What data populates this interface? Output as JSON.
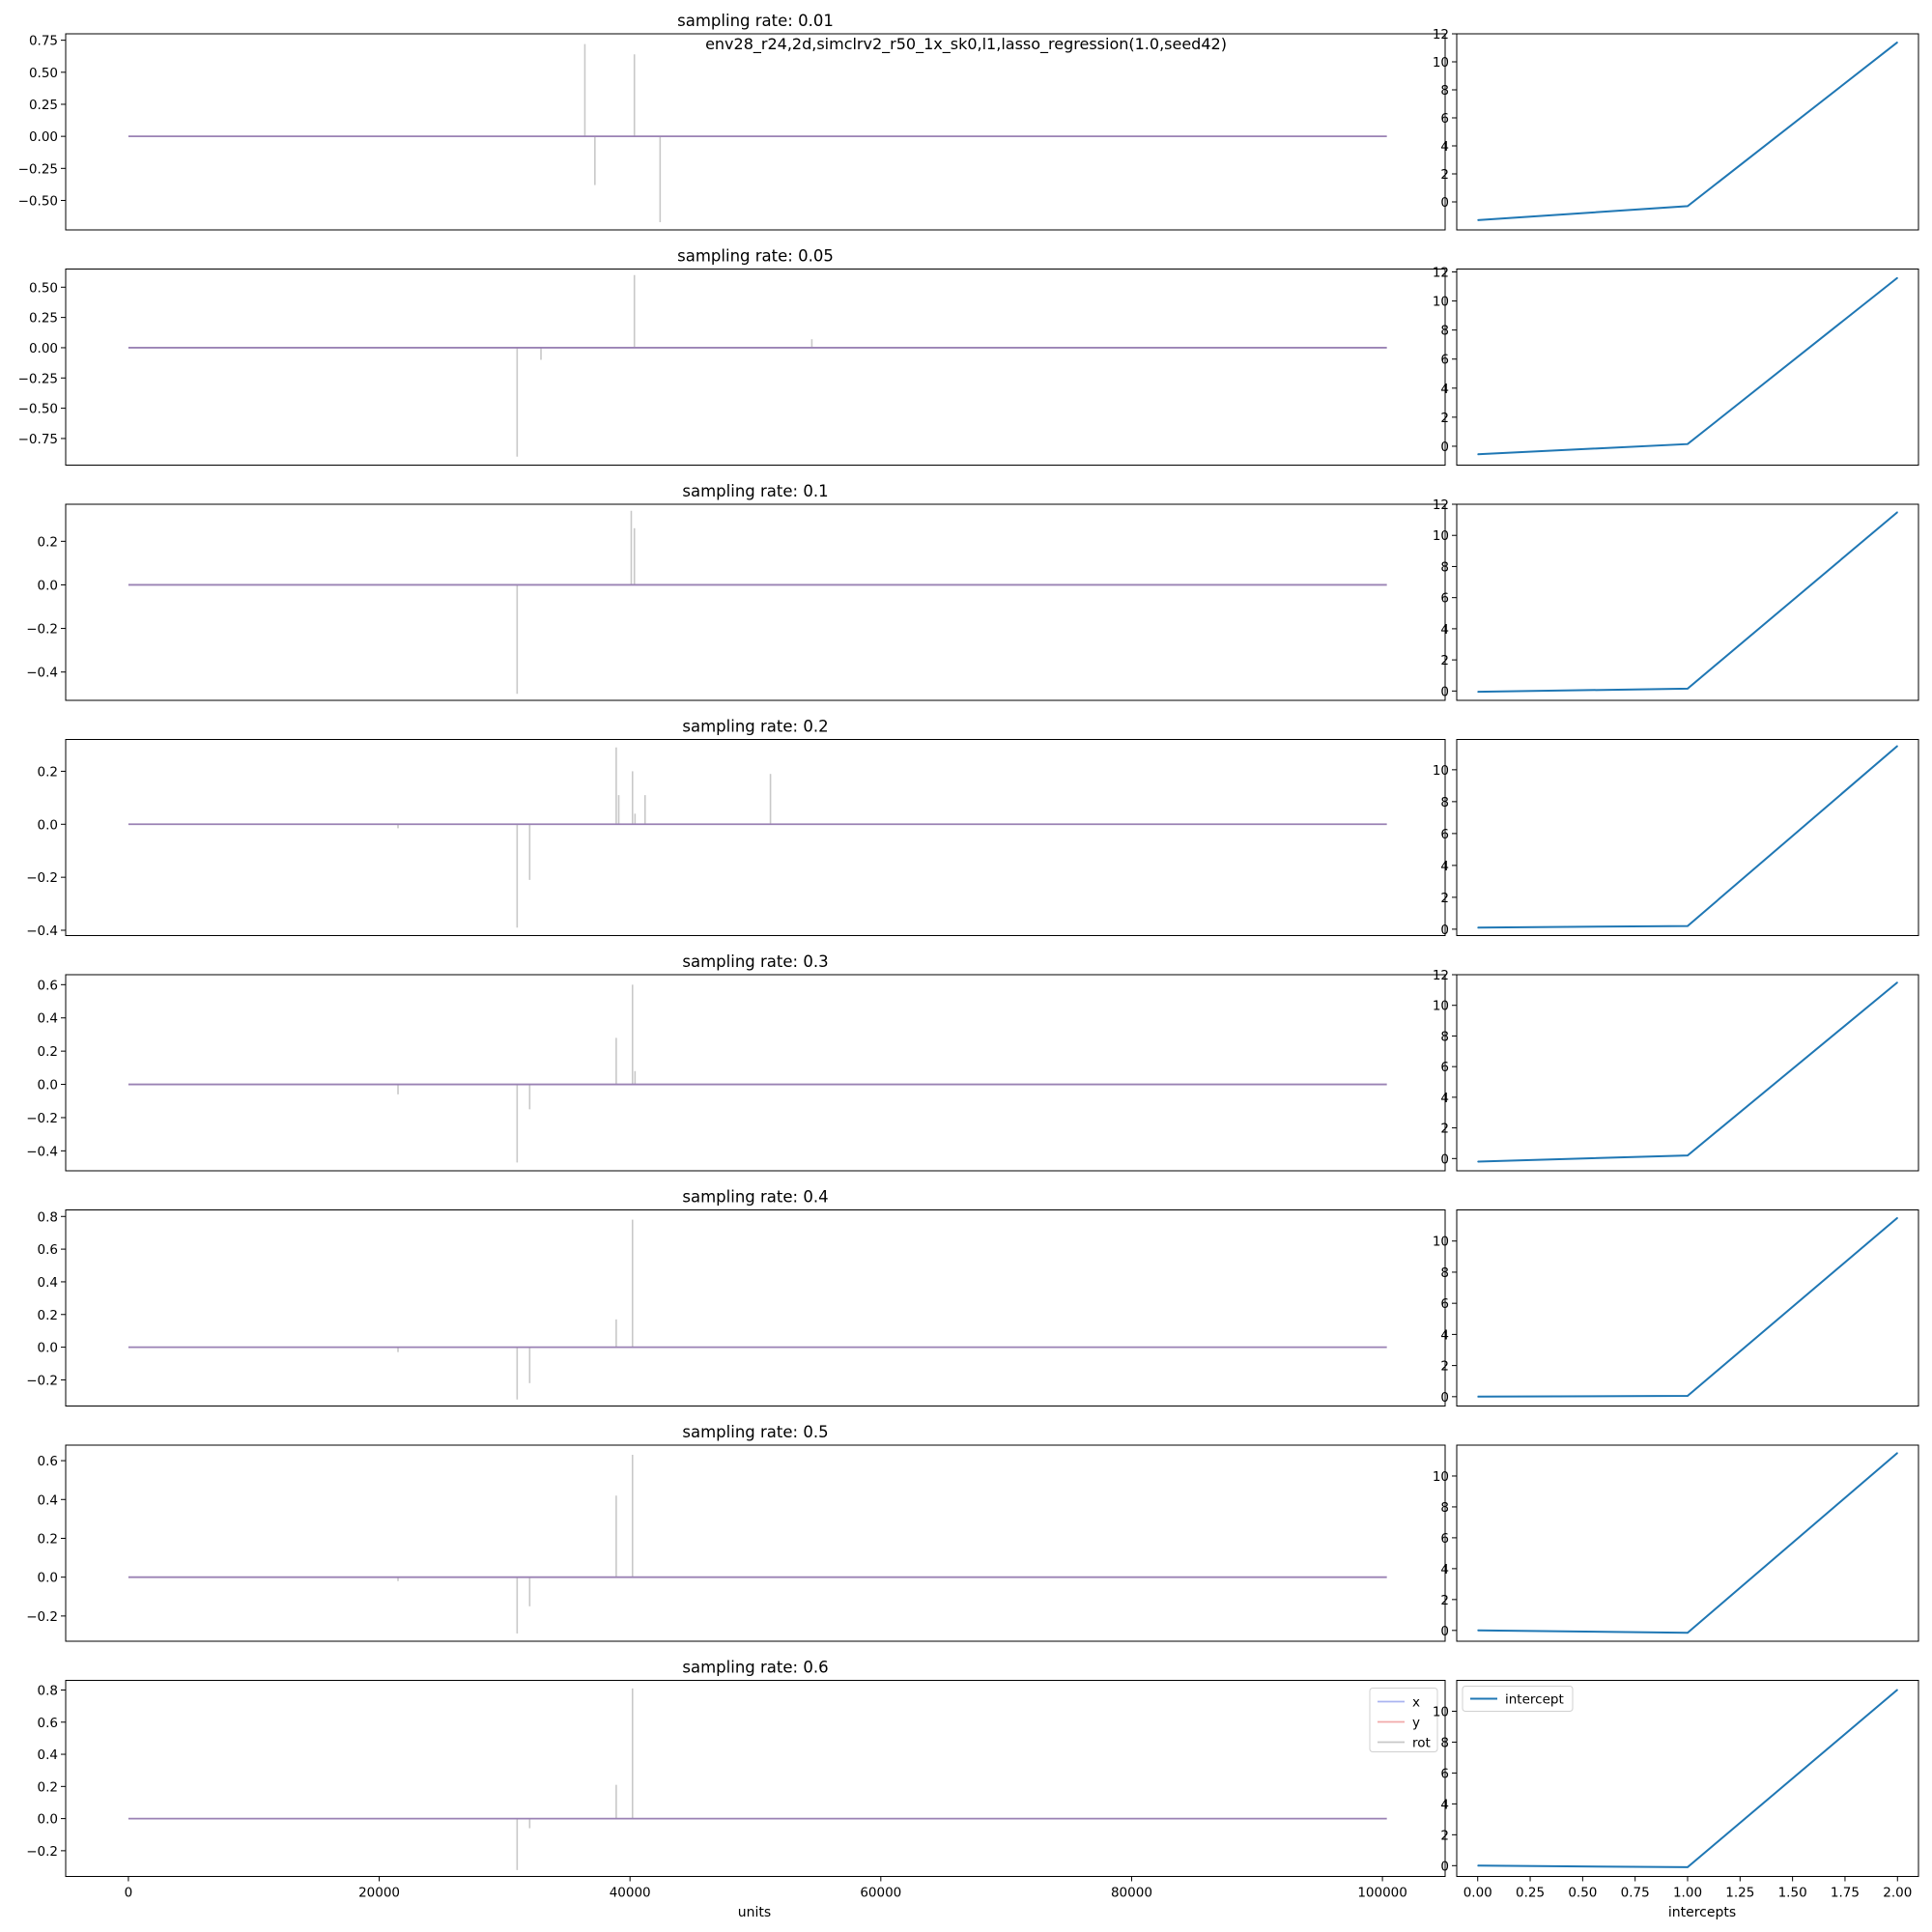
{
  "figure": {
    "suptitle": "env28_r24,2d,simclrv2_r50_1x_sk0,l1,lasso_regression(1.0,seed42)",
    "xlabel_left": "units",
    "xlabel_right": "intercepts",
    "colors": {
      "x": "#aab4f0",
      "y": "#f2aaaa",
      "rot": "#c8c8c8",
      "intercept": "#1f77b4",
      "combined_zero_line": "#9a82b4"
    }
  },
  "chart_data": [
    {
      "type": "line",
      "title": "sampling rate: 0.01",
      "xlim": [
        -5000,
        105000
      ],
      "ylim": [
        -0.73,
        0.8
      ],
      "yticks": [
        0.75,
        0.5,
        0.25,
        0.0,
        -0.25,
        -0.5
      ],
      "ytick_labels": [
        "0.75",
        "0.50",
        "0.25",
        "0.00",
        "−0.25",
        "−0.50"
      ],
      "x_range": [
        0,
        100352
      ],
      "series": [
        {
          "name": "x",
          "spikes": []
        },
        {
          "name": "y",
          "spikes": []
        },
        {
          "name": "rot",
          "spikes": [
            [
              36400,
              0.72
            ],
            [
              37200,
              -0.38
            ],
            [
              40350,
              0.64
            ],
            [
              42400,
              -0.67
            ]
          ]
        }
      ],
      "intercepts": {
        "x": [
          0,
          1,
          2
        ],
        "y": [
          -1.3,
          -0.3,
          11.4
        ],
        "ylim": [
          -2.0,
          12.0
        ],
        "yticks": [
          12,
          10,
          8,
          6,
          4,
          2,
          0
        ],
        "ytick_labels": [
          "12",
          "10",
          "8",
          "6",
          "4",
          "2",
          "0"
        ]
      }
    },
    {
      "type": "line",
      "title": "sampling rate: 0.05",
      "xlim": [
        -5000,
        105000
      ],
      "ylim": [
        -0.97,
        0.65
      ],
      "yticks": [
        0.5,
        0.25,
        0.0,
        -0.25,
        -0.5,
        -0.75
      ],
      "ytick_labels": [
        "0.50",
        "0.25",
        "0.00",
        "−0.25",
        "−0.50",
        "−0.75"
      ],
      "x_range": [
        0,
        100352
      ],
      "series": [
        {
          "name": "x",
          "spikes": []
        },
        {
          "name": "y",
          "spikes": []
        },
        {
          "name": "rot",
          "spikes": [
            [
              31000,
              -0.9
            ],
            [
              32900,
              -0.1
            ],
            [
              40350,
              0.6
            ],
            [
              54500,
              0.07
            ]
          ]
        }
      ],
      "intercepts": {
        "x": [
          0,
          1,
          2
        ],
        "y": [
          -0.55,
          0.15,
          11.6
        ],
        "ylim": [
          -1.3,
          12.2
        ],
        "yticks": [
          12,
          10,
          8,
          6,
          4,
          2,
          0
        ],
        "ytick_labels": [
          "12",
          "10",
          "8",
          "6",
          "4",
          "2",
          "0"
        ]
      }
    },
    {
      "type": "line",
      "title": "sampling rate: 0.1",
      "xlim": [
        -5000,
        105000
      ],
      "ylim": [
        -0.53,
        0.37
      ],
      "yticks": [
        0.2,
        0.0,
        -0.2,
        -0.4
      ],
      "ytick_labels": [
        "0.2",
        "0.0",
        "−0.2",
        "−0.4"
      ],
      "x_range": [
        0,
        100352
      ],
      "series": [
        {
          "name": "x",
          "spikes": []
        },
        {
          "name": "y",
          "spikes": []
        },
        {
          "name": "rot",
          "spikes": [
            [
              31000,
              -0.5
            ],
            [
              40100,
              0.34
            ],
            [
              40350,
              0.26
            ]
          ]
        }
      ],
      "intercepts": {
        "x": [
          0,
          1,
          2
        ],
        "y": [
          -0.05,
          0.15,
          11.5
        ],
        "ylim": [
          -0.6,
          12.0
        ],
        "yticks": [
          12,
          10,
          8,
          6,
          4,
          2,
          0
        ],
        "ytick_labels": [
          "12",
          "10",
          "8",
          "6",
          "4",
          "2",
          "0"
        ]
      }
    },
    {
      "type": "line",
      "title": "sampling rate: 0.2",
      "xlim": [
        -5000,
        105000
      ],
      "ylim": [
        -0.42,
        0.32
      ],
      "yticks": [
        0.2,
        0.0,
        -0.2,
        -0.4
      ],
      "ytick_labels": [
        "0.2",
        "0.0",
        "−0.2",
        "−0.4"
      ],
      "x_range": [
        0,
        100352
      ],
      "series": [
        {
          "name": "x",
          "spikes": []
        },
        {
          "name": "y",
          "spikes": []
        },
        {
          "name": "rot",
          "spikes": [
            [
              21500,
              -0.015
            ],
            [
              31000,
              -0.39
            ],
            [
              32000,
              -0.21
            ],
            [
              38900,
              0.29
            ],
            [
              39100,
              0.11
            ],
            [
              40200,
              0.2
            ],
            [
              40400,
              0.04
            ],
            [
              41200,
              0.11
            ],
            [
              51200,
              0.19
            ]
          ]
        }
      ],
      "intercepts": {
        "x": [
          0,
          1,
          2
        ],
        "y": [
          0.1,
          0.2,
          11.5
        ],
        "ylim": [
          -0.4,
          11.9
        ],
        "yticks": [
          10,
          8,
          6,
          4,
          2,
          0
        ],
        "ytick_labels": [
          "10",
          "8",
          "6",
          "4",
          "2",
          "0"
        ]
      }
    },
    {
      "type": "line",
      "title": "sampling rate: 0.3",
      "xlim": [
        -5000,
        105000
      ],
      "ylim": [
        -0.52,
        0.66
      ],
      "yticks": [
        0.6,
        0.4,
        0.2,
        0.0,
        -0.2,
        -0.4
      ],
      "ytick_labels": [
        "0.6",
        "0.4",
        "0.2",
        "0.0",
        "−0.2",
        "−0.4"
      ],
      "x_range": [
        0,
        100352
      ],
      "series": [
        {
          "name": "x",
          "spikes": []
        },
        {
          "name": "y",
          "spikes": []
        },
        {
          "name": "rot",
          "spikes": [
            [
              21500,
              -0.06
            ],
            [
              31000,
              -0.47
            ],
            [
              32000,
              -0.15
            ],
            [
              38900,
              0.28
            ],
            [
              40200,
              0.6
            ],
            [
              40400,
              0.08
            ]
          ]
        }
      ],
      "intercepts": {
        "x": [
          0,
          1,
          2
        ],
        "y": [
          -0.2,
          0.2,
          11.5
        ],
        "ylim": [
          -0.8,
          12.0
        ],
        "yticks": [
          12,
          10,
          8,
          6,
          4,
          2,
          0
        ],
        "ytick_labels": [
          "12",
          "10",
          "8",
          "6",
          "4",
          "2",
          "0"
        ]
      }
    },
    {
      "type": "line",
      "title": "sampling rate: 0.4",
      "xlim": [
        -5000,
        105000
      ],
      "ylim": [
        -0.36,
        0.84
      ],
      "yticks": [
        0.8,
        0.6,
        0.4,
        0.2,
        0.0,
        -0.2
      ],
      "ytick_labels": [
        "0.8",
        "0.6",
        "0.4",
        "0.2",
        "0.0",
        "−0.2"
      ],
      "x_range": [
        0,
        100352
      ],
      "series": [
        {
          "name": "x",
          "spikes": []
        },
        {
          "name": "y",
          "spikes": []
        },
        {
          "name": "rot",
          "spikes": [
            [
              21500,
              -0.03
            ],
            [
              31000,
              -0.32
            ],
            [
              32000,
              -0.22
            ],
            [
              38900,
              0.17
            ],
            [
              40200,
              0.78
            ]
          ]
        }
      ],
      "intercepts": {
        "x": [
          0,
          1,
          2
        ],
        "y": [
          0.0,
          0.05,
          11.5
        ],
        "ylim": [
          -0.6,
          12.0
        ],
        "yticks": [
          10,
          8,
          6,
          4,
          2,
          0
        ],
        "ytick_labels": [
          "10",
          "8",
          "6",
          "4",
          "2",
          "0"
        ]
      }
    },
    {
      "type": "line",
      "title": "sampling rate: 0.5",
      "xlim": [
        -5000,
        105000
      ],
      "ylim": [
        -0.33,
        0.68
      ],
      "yticks": [
        0.6,
        0.4,
        0.2,
        0.0,
        -0.2
      ],
      "ytick_labels": [
        "0.6",
        "0.4",
        "0.2",
        "0.0",
        "−0.2"
      ],
      "x_range": [
        0,
        100352
      ],
      "series": [
        {
          "name": "x",
          "spikes": []
        },
        {
          "name": "y",
          "spikes": []
        },
        {
          "name": "rot",
          "spikes": [
            [
              21500,
              -0.02
            ],
            [
              31000,
              -0.29
            ],
            [
              32000,
              -0.15
            ],
            [
              38900,
              0.42
            ],
            [
              40200,
              0.63
            ]
          ]
        }
      ],
      "intercepts": {
        "x": [
          0,
          1,
          2
        ],
        "y": [
          0.0,
          -0.15,
          11.5
        ],
        "ylim": [
          -0.7,
          12.0
        ],
        "yticks": [
          10,
          8,
          6,
          4,
          2,
          0
        ],
        "ytick_labels": [
          "10",
          "8",
          "6",
          "4",
          "2",
          "0"
        ]
      }
    },
    {
      "type": "line",
      "title": "sampling rate: 0.6",
      "xlim": [
        -5000,
        105000
      ],
      "ylim": [
        -0.36,
        0.86
      ],
      "yticks": [
        0.8,
        0.6,
        0.4,
        0.2,
        0.0,
        -0.2
      ],
      "ytick_labels": [
        "0.8",
        "0.6",
        "0.4",
        "0.2",
        "0.0",
        "−0.2"
      ],
      "xticks": [
        0,
        20000,
        40000,
        60000,
        80000,
        100000
      ],
      "xtick_labels": [
        "0",
        "20000",
        "40000",
        "60000",
        "80000",
        "100000"
      ],
      "x_range": [
        0,
        100352
      ],
      "legend": {
        "placement": "upper right",
        "entries": [
          "x",
          "y",
          "rot"
        ]
      },
      "series": [
        {
          "name": "x",
          "spikes": []
        },
        {
          "name": "y",
          "spikes": []
        },
        {
          "name": "rot",
          "spikes": [
            [
              31000,
              -0.32
            ],
            [
              32000,
              -0.06
            ],
            [
              38900,
              0.21
            ],
            [
              40200,
              0.81
            ]
          ]
        }
      ],
      "intercepts": {
        "x": [
          0,
          1,
          2
        ],
        "y": [
          0.0,
          -0.1,
          11.4
        ],
        "ylim": [
          -0.7,
          12.0
        ],
        "yticks": [
          10,
          8,
          6,
          4,
          2,
          0
        ],
        "ytick_labels": [
          "10",
          "8",
          "6",
          "4",
          "2",
          "0"
        ],
        "xlim": [
          -0.1,
          2.1
        ],
        "xticks": [
          0,
          0.25,
          0.5,
          0.75,
          1.0,
          1.25,
          1.5,
          1.75,
          2.0
        ],
        "xtick_labels": [
          "0.00",
          "0.25",
          "0.50",
          "0.75",
          "1.00",
          "1.25",
          "1.50",
          "1.75",
          "2.00"
        ],
        "legend": {
          "placement": "upper left",
          "entries": [
            "intercept"
          ]
        }
      }
    }
  ]
}
